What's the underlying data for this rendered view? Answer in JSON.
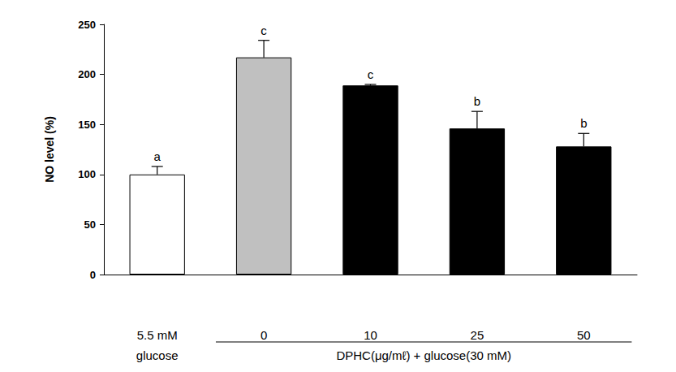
{
  "chart_data": {
    "type": "bar",
    "ylabel": "NO level (%)",
    "categories": [
      "5.5 mM\nglucose",
      "0",
      "10",
      "25",
      "50"
    ],
    "values": [
      100,
      217,
      189,
      146,
      128
    ],
    "errors": [
      8,
      17,
      1,
      17,
      13
    ],
    "significance_labels": [
      "a",
      "c",
      "c",
      "b",
      "b"
    ],
    "group_label": "DPHC(μg/mℓ) + glucose(30 mM)",
    "colors": [
      "#ffffff",
      "#c0c0c0",
      "#000000",
      "#000000",
      "#000000"
    ],
    "ylim": [
      0,
      250
    ],
    "yticks": [
      0,
      50,
      100,
      150,
      200,
      250
    ],
    "grid": false
  }
}
